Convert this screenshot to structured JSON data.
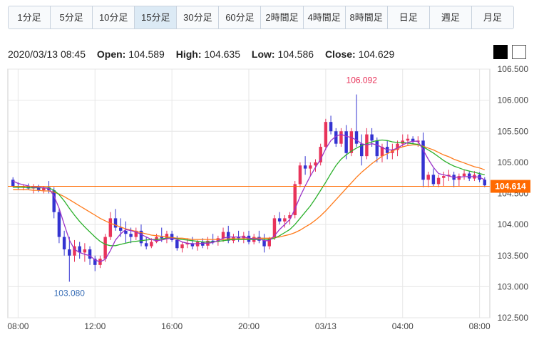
{
  "timeframes": {
    "items": [
      "1分足",
      "5分足",
      "10分足",
      "15分足",
      "30分足",
      "60分足",
      "2時間足",
      "4時間足",
      "8時間足",
      "日足",
      "週足",
      "月足"
    ],
    "active_index": 3
  },
  "ohlc": {
    "datetime": "2020/03/13 08:45",
    "open_label": "Open:",
    "open": "104.589",
    "high_label": "High:",
    "high": "104.635",
    "low_label": "Low:",
    "low": "104.586",
    "close_label": "Close:",
    "close": "104.629"
  },
  "theme_buttons": [
    "dark",
    "light"
  ],
  "chart_data": {
    "type": "candlestick",
    "y_axis": {
      "min": 102.5,
      "max": 106.5,
      "ticks": [
        "106.500",
        "106.000",
        "105.500",
        "105.000",
        "104.500",
        "104.000",
        "103.500",
        "103.000",
        "102.500"
      ]
    },
    "x_axis": {
      "ticks": [
        "08:00",
        "12:00",
        "16:00",
        "20:00",
        "03/13",
        "04:00",
        "08:00"
      ],
      "tick_bars": [
        1,
        16,
        31,
        46,
        61,
        76,
        91
      ]
    },
    "current_price": {
      "label": "104.614",
      "value": 104.614,
      "color": "#ff6a00"
    },
    "annotations": [
      {
        "text": "106.092",
        "bar": 68,
        "value": 106.092,
        "color": "#e8335a"
      },
      {
        "text": "103.080",
        "bar": 11,
        "value": 103.08,
        "color": "#3a6fb7"
      }
    ],
    "colors": {
      "up": "#e8335a",
      "down": "#3333d1",
      "ma_short": "#9b33c8",
      "ma_mid": "#2bb02b",
      "ma_long": "#ff7a1a"
    },
    "candles": [
      [
        104.72,
        104.76,
        104.6,
        104.62
      ],
      [
        104.62,
        104.68,
        104.57,
        104.6
      ],
      [
        104.6,
        104.65,
        104.55,
        104.62
      ],
      [
        104.62,
        104.66,
        104.56,
        104.58
      ],
      [
        104.58,
        104.65,
        104.5,
        104.6
      ],
      [
        104.6,
        104.64,
        104.52,
        104.55
      ],
      [
        104.55,
        104.62,
        104.5,
        104.6
      ],
      [
        104.6,
        104.7,
        104.5,
        104.55
      ],
      [
        104.55,
        104.6,
        104.1,
        104.2
      ],
      [
        104.2,
        104.25,
        103.7,
        103.8
      ],
      [
        103.8,
        103.9,
        103.5,
        103.6
      ],
      [
        103.6,
        103.8,
        103.08,
        103.5
      ],
      [
        103.5,
        103.75,
        103.4,
        103.65
      ],
      [
        103.65,
        103.72,
        103.45,
        103.55
      ],
      [
        103.55,
        103.7,
        103.4,
        103.6
      ],
      [
        103.6,
        103.65,
        103.35,
        103.45
      ],
      [
        103.45,
        103.5,
        103.25,
        103.35
      ],
      [
        103.35,
        103.5,
        103.3,
        103.45
      ],
      [
        103.45,
        103.85,
        103.4,
        103.8
      ],
      [
        103.8,
        104.2,
        103.75,
        104.1
      ],
      [
        104.1,
        104.25,
        103.9,
        103.95
      ],
      [
        103.95,
        104.1,
        103.8,
        103.9
      ],
      [
        103.9,
        104.05,
        103.7,
        103.85
      ],
      [
        103.85,
        103.95,
        103.7,
        103.8
      ],
      [
        103.8,
        103.95,
        103.75,
        103.9
      ],
      [
        103.9,
        104.0,
        103.65,
        103.7
      ],
      [
        103.7,
        103.8,
        103.6,
        103.65
      ],
      [
        103.65,
        103.78,
        103.62,
        103.72
      ],
      [
        103.72,
        103.85,
        103.7,
        103.8
      ],
      [
        103.8,
        103.95,
        103.72,
        103.78
      ],
      [
        103.78,
        103.9,
        103.7,
        103.85
      ],
      [
        103.85,
        103.9,
        103.72,
        103.75
      ],
      [
        103.75,
        103.82,
        103.58,
        103.62
      ],
      [
        103.62,
        103.72,
        103.55,
        103.68
      ],
      [
        103.68,
        103.78,
        103.62,
        103.7
      ],
      [
        103.7,
        103.8,
        103.6,
        103.65
      ],
      [
        103.65,
        103.75,
        103.58,
        103.72
      ],
      [
        103.72,
        103.78,
        103.62,
        103.66
      ],
      [
        103.66,
        103.8,
        103.6,
        103.74
      ],
      [
        103.74,
        103.85,
        103.68,
        103.72
      ],
      [
        103.72,
        103.82,
        103.66,
        103.78
      ],
      [
        103.78,
        103.95,
        103.72,
        103.88
      ],
      [
        103.88,
        103.98,
        103.7,
        103.74
      ],
      [
        103.74,
        103.85,
        103.7,
        103.8
      ],
      [
        103.8,
        103.9,
        103.72,
        103.78
      ],
      [
        103.78,
        103.88,
        103.7,
        103.82
      ],
      [
        103.82,
        103.9,
        103.68,
        103.72
      ],
      [
        103.72,
        103.85,
        103.68,
        103.8
      ],
      [
        103.8,
        103.9,
        103.7,
        103.74
      ],
      [
        103.74,
        103.85,
        103.55,
        103.65
      ],
      [
        103.65,
        103.8,
        103.6,
        103.78
      ],
      [
        103.78,
        104.15,
        103.75,
        104.1
      ],
      [
        104.1,
        104.2,
        104.0,
        104.05
      ],
      [
        104.05,
        104.15,
        103.95,
        104.1
      ],
      [
        104.1,
        104.2,
        104.0,
        104.15
      ],
      [
        104.15,
        104.7,
        104.1,
        104.65
      ],
      [
        104.65,
        105.0,
        104.6,
        104.95
      ],
      [
        104.95,
        105.1,
        104.8,
        104.9
      ],
      [
        104.9,
        105.0,
        104.78,
        104.95
      ],
      [
        104.95,
        105.05,
        104.85,
        105.0
      ],
      [
        105.0,
        105.3,
        104.95,
        105.25
      ],
      [
        105.25,
        105.7,
        105.2,
        105.65
      ],
      [
        105.65,
        105.75,
        105.45,
        105.5
      ],
      [
        105.5,
        105.55,
        105.25,
        105.3
      ],
      [
        105.3,
        105.55,
        105.25,
        105.5
      ],
      [
        105.5,
        105.6,
        105.05,
        105.15
      ],
      [
        105.15,
        105.55,
        105.1,
        105.5
      ],
      [
        105.5,
        106.092,
        105.25,
        105.3
      ],
      [
        105.3,
        105.45,
        104.95,
        105.1
      ],
      [
        105.1,
        105.55,
        105.05,
        105.45
      ],
      [
        105.45,
        105.55,
        105.25,
        105.35
      ],
      [
        105.35,
        105.4,
        105.0,
        105.1
      ],
      [
        105.1,
        105.3,
        105.0,
        105.25
      ],
      [
        105.25,
        105.35,
        105.05,
        105.15
      ],
      [
        105.15,
        105.3,
        105.05,
        105.2
      ],
      [
        105.2,
        105.35,
        105.1,
        105.3
      ],
      [
        105.3,
        105.45,
        105.25,
        105.35
      ],
      [
        105.35,
        105.45,
        105.28,
        105.38
      ],
      [
        105.38,
        105.42,
        105.3,
        105.33
      ],
      [
        105.33,
        105.42,
        105.25,
        105.35
      ],
      [
        105.35,
        105.48,
        104.6,
        104.72
      ],
      [
        104.72,
        104.85,
        104.6,
        104.8
      ],
      [
        104.8,
        104.9,
        104.62,
        104.65
      ],
      [
        104.65,
        104.8,
        104.6,
        104.75
      ],
      [
        104.75,
        104.85,
        104.62,
        104.78
      ],
      [
        104.78,
        104.88,
        104.7,
        104.8
      ],
      [
        104.8,
        104.85,
        104.6,
        104.72
      ],
      [
        104.72,
        104.82,
        104.62,
        104.78
      ],
      [
        104.78,
        104.88,
        104.72,
        104.82
      ],
      [
        104.82,
        104.86,
        104.7,
        104.74
      ],
      [
        104.74,
        104.86,
        104.7,
        104.8
      ],
      [
        104.8,
        104.84,
        104.68,
        104.72
      ],
      [
        104.72,
        104.76,
        104.6,
        104.63
      ]
    ],
    "ma_short": [
      104.7,
      104.66,
      104.64,
      104.62,
      104.6,
      104.6,
      104.59,
      104.58,
      104.46,
      104.26,
      104.0,
      103.75,
      103.6,
      103.55,
      103.52,
      103.5,
      103.43,
      103.4,
      103.44,
      103.58,
      103.75,
      103.85,
      103.92,
      103.9,
      103.88,
      103.84,
      103.8,
      103.76,
      103.74,
      103.75,
      103.77,
      103.78,
      103.76,
      103.72,
      103.7,
      103.69,
      103.69,
      103.7,
      103.7,
      103.71,
      103.74,
      103.78,
      103.8,
      103.8,
      103.8,
      103.8,
      103.78,
      103.77,
      103.77,
      103.74,
      103.74,
      103.82,
      103.92,
      104.0,
      104.08,
      104.25,
      104.45,
      104.62,
      104.78,
      104.92,
      105.05,
      105.22,
      105.35,
      105.42,
      105.45,
      105.42,
      105.4,
      105.36,
      105.3,
      105.28,
      105.3,
      105.28,
      105.24,
      105.2,
      105.2,
      105.23,
      105.28,
      105.32,
      105.34,
      105.34,
      105.2,
      105.05,
      104.92,
      104.82,
      104.8,
      104.78,
      104.76,
      104.76,
      104.77,
      104.77,
      104.77,
      104.76,
      104.72
    ],
    "ma_mid": [
      104.6,
      104.6,
      104.6,
      104.59,
      104.59,
      104.59,
      104.59,
      104.59,
      104.55,
      104.48,
      104.38,
      104.26,
      104.15,
      104.05,
      103.96,
      103.88,
      103.8,
      103.73,
      103.68,
      103.66,
      103.66,
      103.68,
      103.7,
      103.72,
      103.73,
      103.74,
      103.75,
      103.76,
      103.76,
      103.77,
      103.78,
      103.78,
      103.77,
      103.76,
      103.75,
      103.74,
      103.73,
      103.72,
      103.72,
      103.72,
      103.73,
      103.74,
      103.75,
      103.76,
      103.76,
      103.76,
      103.76,
      103.76,
      103.76,
      103.76,
      103.76,
      103.78,
      103.82,
      103.87,
      103.92,
      104.0,
      104.1,
      104.2,
      104.3,
      104.42,
      104.55,
      104.68,
      104.82,
      104.95,
      105.05,
      105.12,
      105.18,
      105.23,
      105.27,
      105.3,
      105.33,
      105.35,
      105.36,
      105.35,
      105.33,
      105.32,
      105.32,
      105.31,
      105.3,
      105.29,
      105.25,
      105.2,
      105.15,
      105.09,
      105.03,
      104.98,
      104.94,
      104.91,
      104.88,
      104.86,
      104.84,
      104.82,
      104.8
    ],
    "ma_long": [
      104.56,
      104.56,
      104.56,
      104.56,
      104.55,
      104.55,
      104.54,
      104.54,
      104.52,
      104.49,
      104.45,
      104.4,
      104.35,
      104.3,
      104.25,
      104.2,
      104.15,
      104.1,
      104.06,
      104.02,
      103.99,
      103.96,
      103.93,
      103.91,
      103.89,
      103.87,
      103.85,
      103.83,
      103.82,
      103.81,
      103.8,
      103.79,
      103.78,
      103.78,
      103.77,
      103.76,
      103.76,
      103.76,
      103.76,
      103.76,
      103.76,
      103.76,
      103.77,
      103.77,
      103.77,
      103.77,
      103.77,
      103.78,
      103.78,
      103.78,
      103.78,
      103.79,
      103.8,
      103.82,
      103.84,
      103.87,
      103.91,
      103.96,
      104.01,
      104.07,
      104.14,
      104.22,
      104.31,
      104.4,
      104.49,
      104.58,
      104.67,
      104.76,
      104.84,
      104.91,
      104.98,
      105.04,
      105.1,
      105.14,
      105.18,
      105.22,
      105.25,
      105.27,
      105.28,
      105.28,
      105.26,
      105.23,
      105.2,
      105.16,
      105.12,
      105.09,
      105.05,
      105.02,
      104.99,
      104.96,
      104.93,
      104.91,
      104.88
    ]
  }
}
